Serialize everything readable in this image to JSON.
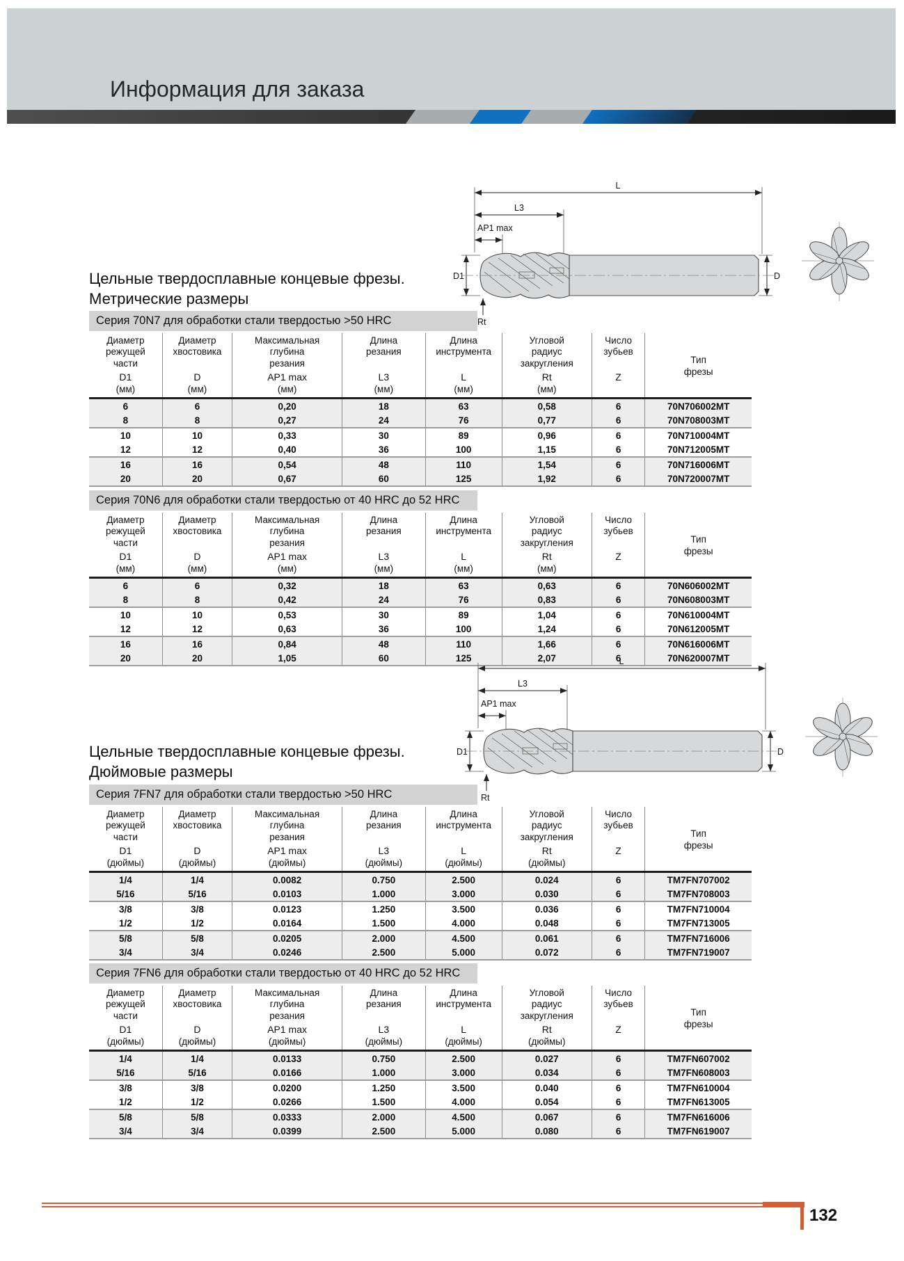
{
  "page": {
    "header_title": "Информация для заказа",
    "page_number": "132"
  },
  "sections": {
    "metric": {
      "line1": "Цельные твердосплавные концевые фрезы.",
      "line2": "Метрические размеры"
    },
    "inch": {
      "line1": "Цельные твердосплавные концевые фрезы.",
      "line2": "Дюймовые размеры"
    }
  },
  "drawing": {
    "labels": {
      "l": "L",
      "l3": "L3",
      "ap1": "AP1 max",
      "d1": "D1",
      "d": "D",
      "rt": "Rt"
    }
  },
  "tables": [
    {
      "caption": "Серия 70N7 для обработки стали твердостью >50 HRC",
      "columns": [
        {
          "lines": [
            "Диаметр",
            "режущей",
            "части"
          ],
          "symbol": "D1",
          "unit": "(мм)"
        },
        {
          "lines": [
            "Диаметр",
            "хвостовика"
          ],
          "symbol": "D",
          "unit": "(мм)"
        },
        {
          "lines": [
            "Максимальная",
            "глубина",
            "резания"
          ],
          "symbol": "AP1 max",
          "unit": "(мм)"
        },
        {
          "lines": [
            "Длина",
            "резания"
          ],
          "symbol": "L3",
          "unit": "(мм)"
        },
        {
          "lines": [
            "Длина",
            "инструмента"
          ],
          "symbol": "L",
          "unit": "(мм)"
        },
        {
          "lines": [
            "Угловой",
            "радиус",
            "закругления"
          ],
          "symbol": "Rt",
          "unit": "(мм)"
        },
        {
          "lines": [
            "Число",
            "зубьев"
          ],
          "symbol": "Z",
          "unit": ""
        },
        {
          "lines": [
            "Тип",
            "фрезы"
          ],
          "symbol": "",
          "unit": "",
          "type_column": true
        }
      ],
      "rows": [
        [
          "6",
          "6",
          "0,20",
          "18",
          "63",
          "0,58",
          "6",
          "70N706002MT"
        ],
        [
          "8",
          "8",
          "0,27",
          "24",
          "76",
          "0,77",
          "6",
          "70N708003MT"
        ],
        [
          "10",
          "10",
          "0,33",
          "30",
          "89",
          "0,96",
          "6",
          "70N710004MT"
        ],
        [
          "12",
          "12",
          "0,40",
          "36",
          "100",
          "1,15",
          "6",
          "70N712005MT"
        ],
        [
          "16",
          "16",
          "0,54",
          "48",
          "110",
          "1,54",
          "6",
          "70N716006MT"
        ],
        [
          "20",
          "20",
          "0,67",
          "60",
          "125",
          "1,92",
          "6",
          "70N720007MT"
        ]
      ]
    },
    {
      "caption": "Серия 70N6 для обработки стали твердостью от 40 HRC до 52 HRC",
      "columns": [
        {
          "lines": [
            "Диаметр",
            "режущей",
            "части"
          ],
          "symbol": "D1",
          "unit": "(мм)"
        },
        {
          "lines": [
            "Диаметр",
            "хвостовика"
          ],
          "symbol": "D",
          "unit": "(мм)"
        },
        {
          "lines": [
            "Максимальная",
            "глубина",
            "резания"
          ],
          "symbol": "AP1 max",
          "unit": "(мм)"
        },
        {
          "lines": [
            "Длина",
            "резания"
          ],
          "symbol": "L3",
          "unit": "(мм)"
        },
        {
          "lines": [
            "Длина",
            "инструмента"
          ],
          "symbol": "L",
          "unit": "(мм)"
        },
        {
          "lines": [
            "Угловой",
            "радиус",
            "закругления"
          ],
          "symbol": "Rt",
          "unit": "(мм)"
        },
        {
          "lines": [
            "Число",
            "зубьев"
          ],
          "symbol": "Z",
          "unit": ""
        },
        {
          "lines": [
            "Тип",
            "фрезы"
          ],
          "symbol": "",
          "unit": "",
          "type_column": true
        }
      ],
      "rows": [
        [
          "6",
          "6",
          "0,32",
          "18",
          "63",
          "0,63",
          "6",
          "70N606002MT"
        ],
        [
          "8",
          "8",
          "0,42",
          "24",
          "76",
          "0,83",
          "6",
          "70N608003MT"
        ],
        [
          "10",
          "10",
          "0,53",
          "30",
          "89",
          "1,04",
          "6",
          "70N610004MT"
        ],
        [
          "12",
          "12",
          "0,63",
          "36",
          "100",
          "1,24",
          "6",
          "70N612005MT"
        ],
        [
          "16",
          "16",
          "0,84",
          "48",
          "110",
          "1,66",
          "6",
          "70N616006MT"
        ],
        [
          "20",
          "20",
          "1,05",
          "60",
          "125",
          "2,07",
          "6",
          "70N620007MT"
        ]
      ]
    },
    {
      "caption": "Серия 7FN7 для обработки стали твердостью >50 HRC",
      "columns": [
        {
          "lines": [
            "Диаметр",
            "режущей",
            "части"
          ],
          "symbol": "D1",
          "unit": "(дюймы)"
        },
        {
          "lines": [
            "Диаметр",
            "хвостовика"
          ],
          "symbol": "D",
          "unit": "(дюймы)"
        },
        {
          "lines": [
            "Максимальная",
            "глубина",
            "резания"
          ],
          "symbol": "AP1 max",
          "unit": "(дюймы)"
        },
        {
          "lines": [
            "Длина",
            "резания"
          ],
          "symbol": "L3",
          "unit": "(дюймы)"
        },
        {
          "lines": [
            "Длина",
            "инструмента"
          ],
          "symbol": "L",
          "unit": "(дюймы)"
        },
        {
          "lines": [
            "Угловой",
            "радиус",
            "закругления"
          ],
          "symbol": "Rt",
          "unit": "(дюймы)"
        },
        {
          "lines": [
            "Число",
            "зубьев"
          ],
          "symbol": "Z",
          "unit": ""
        },
        {
          "lines": [
            "Тип",
            "фрезы"
          ],
          "symbol": "",
          "unit": "",
          "type_column": true
        }
      ],
      "rows": [
        [
          "1/4",
          "1/4",
          "0.0082",
          "0.750",
          "2.500",
          "0.024",
          "6",
          "TM7FN707002"
        ],
        [
          "5/16",
          "5/16",
          "0.0103",
          "1.000",
          "3.000",
          "0.030",
          "6",
          "TM7FN708003"
        ],
        [
          "3/8",
          "3/8",
          "0.0123",
          "1.250",
          "3.500",
          "0.036",
          "6",
          "TM7FN710004"
        ],
        [
          "1/2",
          "1/2",
          "0.0164",
          "1.500",
          "4.000",
          "0.048",
          "6",
          "TM7FN713005"
        ],
        [
          "5/8",
          "5/8",
          "0.0205",
          "2.000",
          "4.500",
          "0.061",
          "6",
          "TM7FN716006"
        ],
        [
          "3/4",
          "3/4",
          "0.0246",
          "2.500",
          "5.000",
          "0.072",
          "6",
          "TM7FN719007"
        ]
      ]
    },
    {
      "caption": "Серия 7FN6 для обработки стали твердостью от 40 HRC до 52 HRC",
      "columns": [
        {
          "lines": [
            "Диаметр",
            "режущей",
            "части"
          ],
          "symbol": "D1",
          "unit": "(дюймы)"
        },
        {
          "lines": [
            "Диаметр",
            "хвостовика"
          ],
          "symbol": "D",
          "unit": "(дюймы)"
        },
        {
          "lines": [
            "Максимальная",
            "глубина",
            "резания"
          ],
          "symbol": "AP1 max",
          "unit": "(дюймы)"
        },
        {
          "lines": [
            "Длина",
            "резания"
          ],
          "symbol": "L3",
          "unit": "(дюймы)"
        },
        {
          "lines": [
            "Длина",
            "инструмента"
          ],
          "symbol": "L",
          "unit": "(дюймы)"
        },
        {
          "lines": [
            "Угловой",
            "радиус",
            "закругления"
          ],
          "symbol": "Rt",
          "unit": "(дюймы)"
        },
        {
          "lines": [
            "Число",
            "зубьев"
          ],
          "symbol": "Z",
          "unit": ""
        },
        {
          "lines": [
            "Тип",
            "фрезы"
          ],
          "symbol": "",
          "unit": "",
          "type_column": true
        }
      ],
      "rows": [
        [
          "1/4",
          "1/4",
          "0.0133",
          "0.750",
          "2.500",
          "0.027",
          "6",
          "TM7FN607002"
        ],
        [
          "5/16",
          "5/16",
          "0.0166",
          "1.000",
          "3.000",
          "0.034",
          "6",
          "TM7FN608003"
        ],
        [
          "3/8",
          "3/8",
          "0.0200",
          "1.250",
          "3.500",
          "0.040",
          "6",
          "TM7FN610004"
        ],
        [
          "1/2",
          "1/2",
          "0.0266",
          "1.500",
          "4.000",
          "0.054",
          "6",
          "TM7FN613005"
        ],
        [
          "5/8",
          "5/8",
          "0.0333",
          "2.000",
          "4.500",
          "0.067",
          "6",
          "TM7FN616006"
        ],
        [
          "3/4",
          "3/4",
          "0.0399",
          "2.500",
          "5.000",
          "0.080",
          "6",
          "TM7FN619007"
        ]
      ]
    }
  ],
  "colors": {
    "banner_gray": "#ccd2d4",
    "caption_gray": "#d2d2d2",
    "stripe_blue": "#1170c2",
    "accent_orange": "#d05f36"
  }
}
